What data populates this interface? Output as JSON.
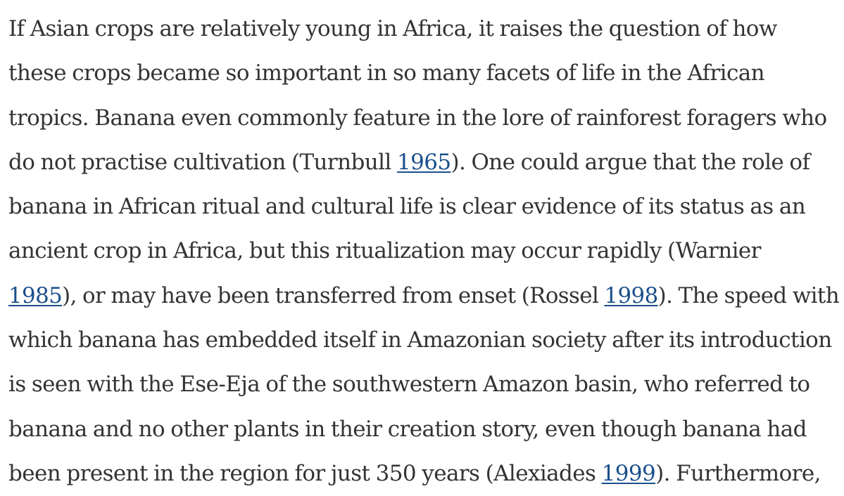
{
  "paragraph": {
    "lines": [
      [
        {
          "t": "If Asian crops are relatively young in Africa, it raises the question of how"
        }
      ],
      [
        {
          "t": "these crops became so important in so many facets of life in the African"
        }
      ],
      [
        {
          "t": "tropics. Banana even commonly feature in the lore of rainforest foragers who"
        }
      ],
      [
        {
          "t": "do not practise cultivation (Turnbull "
        },
        {
          "t": "1965",
          "link": true
        },
        {
          "t": "). One could argue that the role of"
        }
      ],
      [
        {
          "t": "banana in African ritual and cultural life is clear evidence of its status as an"
        }
      ],
      [
        {
          "t": "ancient crop in Africa, but this ritualization may occur rapidly (Warnier"
        }
      ],
      [
        {
          "t": "1985",
          "link": true
        },
        {
          "t": "), or may have been transferred from enset (Rossel "
        },
        {
          "t": "1998",
          "link": true
        },
        {
          "t": "). The speed with"
        }
      ],
      [
        {
          "t": "which banana has embedded itself in Amazonian society after its introduction"
        }
      ],
      [
        {
          "t": "is seen with the Ese-Eja of the southwestern Amazon basin, who referred to"
        }
      ],
      [
        {
          "t": "banana and no other plants in their creation story, even though banana had"
        }
      ],
      [
        {
          "t": "been present in the region for just 350 years (Alexiades "
        },
        {
          "t": "1999",
          "link": true
        },
        {
          "t": "). Furthermore,"
        }
      ]
    ]
  },
  "colors": {
    "text": "#333333",
    "link": "#1a4f8b",
    "background": "#ffffff"
  }
}
